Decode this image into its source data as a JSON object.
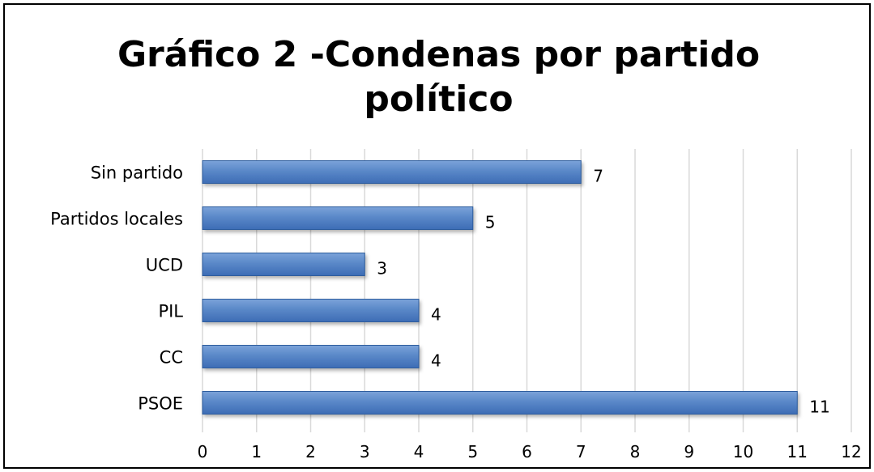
{
  "chart_data": {
    "type": "bar",
    "orientation": "horizontal",
    "title_lines": [
      "Gráfico 2 -Condenas por partido",
      "político"
    ],
    "categories": [
      "Sin partido",
      "Partidos locales",
      "UCD",
      "PIL",
      "CC",
      "PSOE"
    ],
    "values": [
      7,
      5,
      3,
      4,
      4,
      11
    ],
    "xlim": [
      0,
      12
    ],
    "x_ticks": [
      "0",
      "1",
      "2",
      "3",
      "4",
      "5",
      "6",
      "7",
      "8",
      "9",
      "10",
      "11",
      "12"
    ],
    "xlabel": "",
    "ylabel": "",
    "grid": "vertical",
    "legend": "none",
    "data_labels": true,
    "colors": {
      "bar_light": "#7ba3d9",
      "bar_dark": "#3d6cb5",
      "bar_edge": "#2f5d9e",
      "grid": "#d9d9d9"
    }
  }
}
